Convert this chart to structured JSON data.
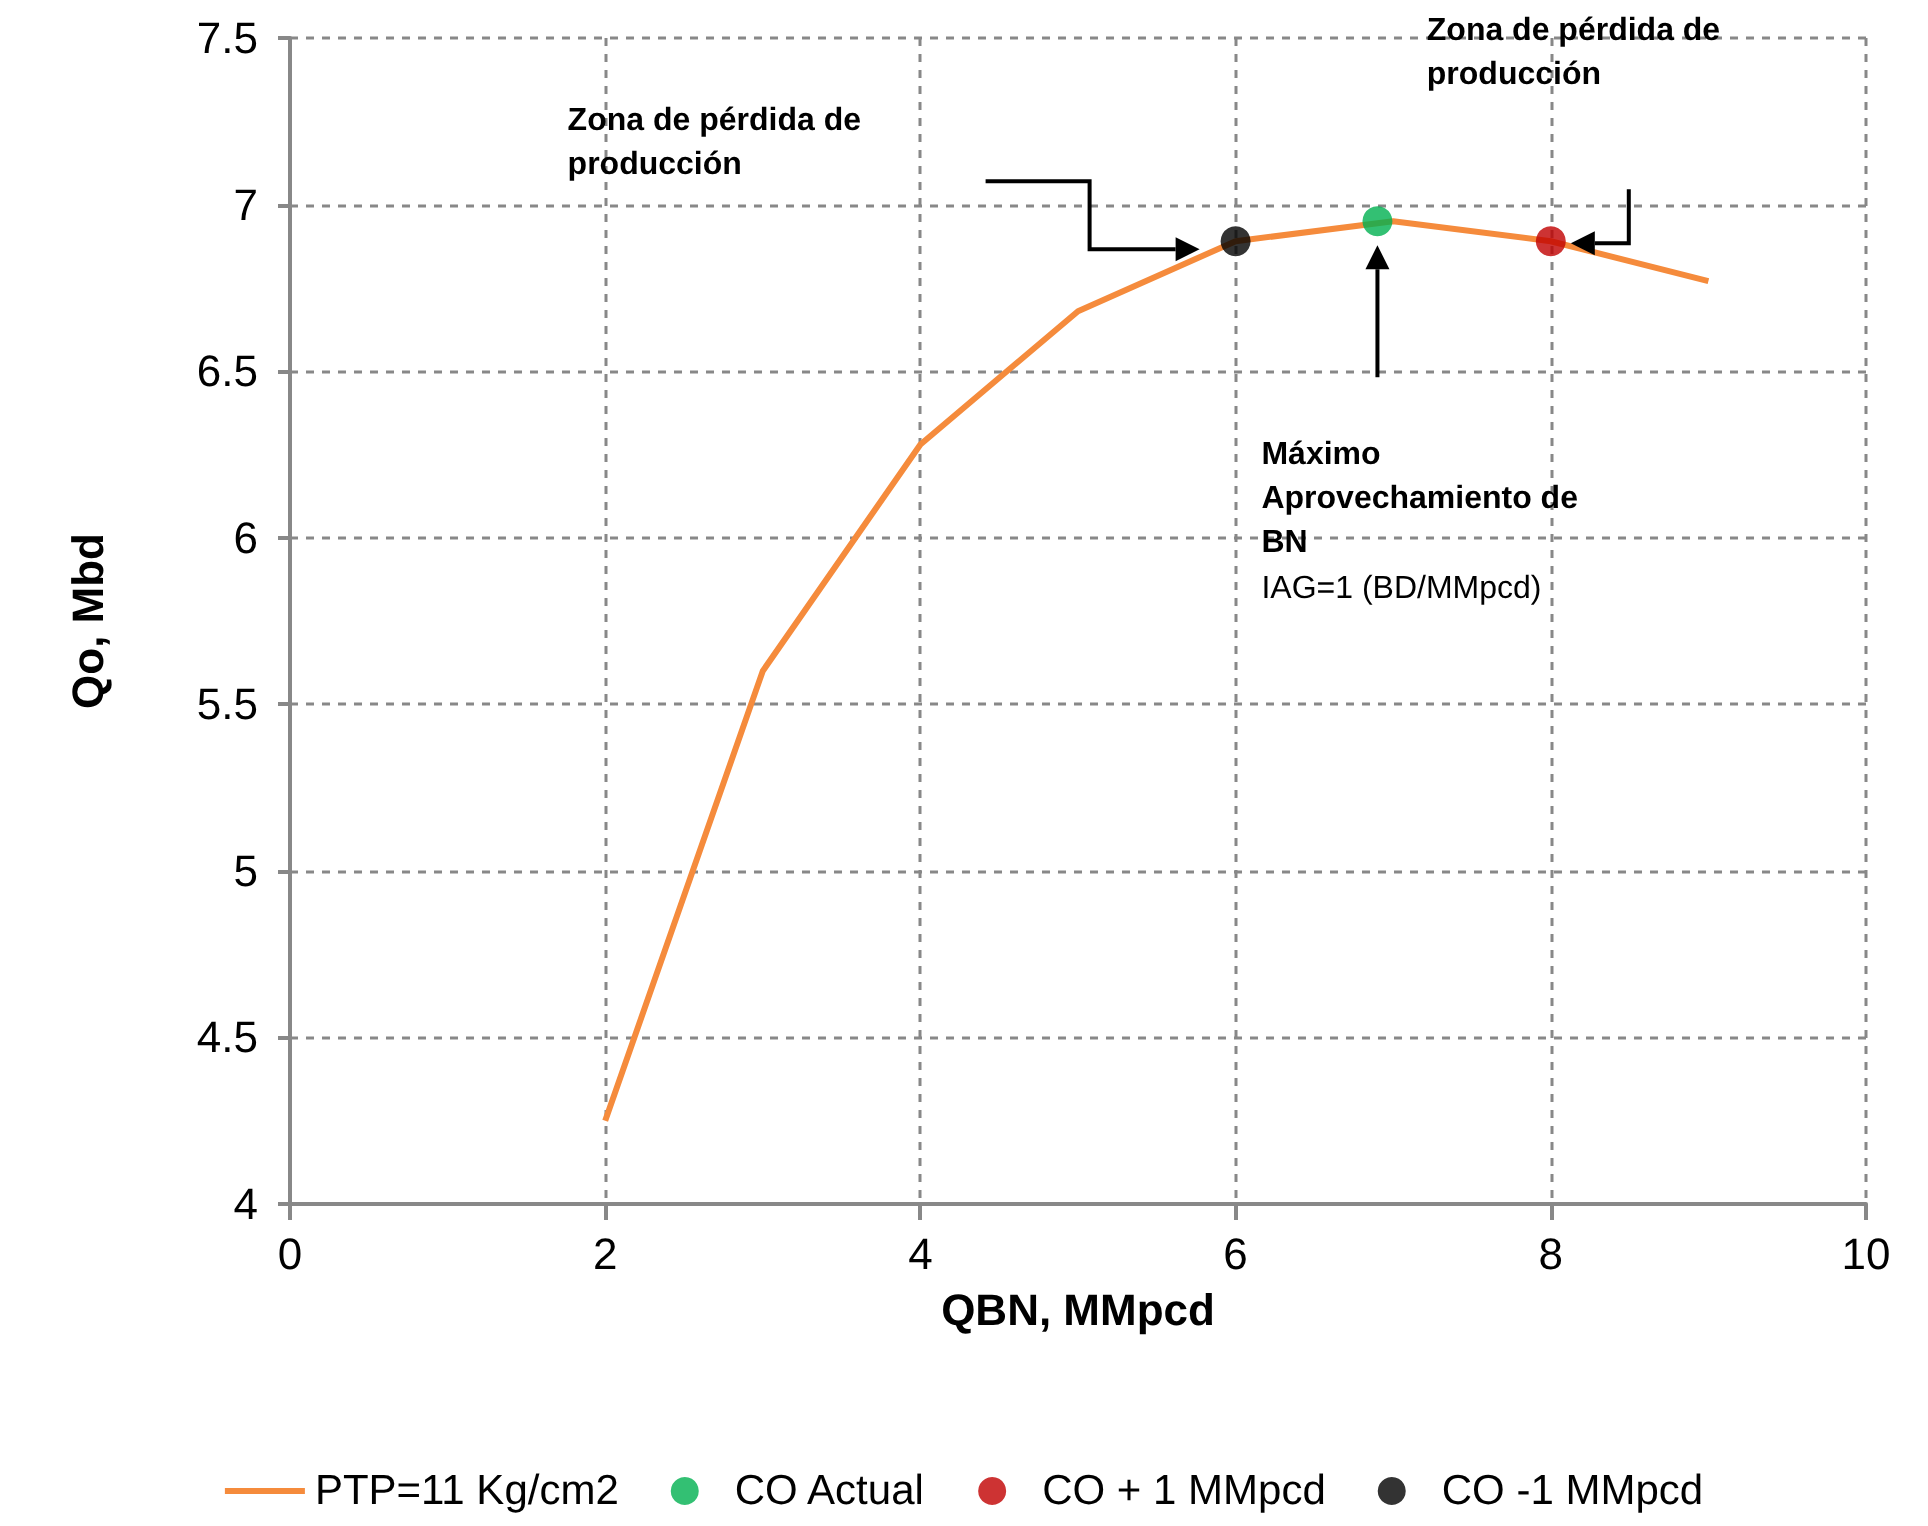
{
  "chart_data": {
    "type": "line",
    "xlabel": "QBN, MMpcd",
    "ylabel": "Qo, Mbd",
    "xlim": [
      0,
      10
    ],
    "xticks": [
      0,
      2,
      4,
      6,
      8,
      10
    ],
    "ylim": [
      4,
      7.5
    ],
    "yticks": [
      4,
      4.5,
      5,
      5.5,
      6,
      6.5,
      7,
      7.5
    ],
    "grid": true,
    "legend": "bottom",
    "series": [
      {
        "name": "PTP=11 Kg/cm2",
        "type": "line",
        "color": "#f58b3c",
        "x": [
          2,
          3,
          4,
          5,
          6,
          7,
          8,
          9
        ],
        "values": [
          4.25,
          5.6,
          6.28,
          6.68,
          6.89,
          6.95,
          6.89,
          6.77
        ]
      },
      {
        "name": "CO Actual",
        "type": "scatter",
        "color": "#00b050",
        "x": [
          6.9
        ],
        "values": [
          6.95
        ]
      },
      {
        "name": "CO + 1 MMpcd",
        "type": "scatter",
        "color": "#c00000",
        "x": [
          8
        ],
        "values": [
          6.89
        ]
      },
      {
        "name": "CO -1 MMpcd",
        "type": "scatter",
        "color": "#000000",
        "x": [
          6
        ],
        "values": [
          6.89
        ]
      }
    ],
    "annotations": [
      "Zona de pérdida de producción",
      "Zona de pérdida de producción",
      "Máximo Aprovechamiento de BN",
      "IAG=1 (BD/MMpcd)"
    ]
  }
}
